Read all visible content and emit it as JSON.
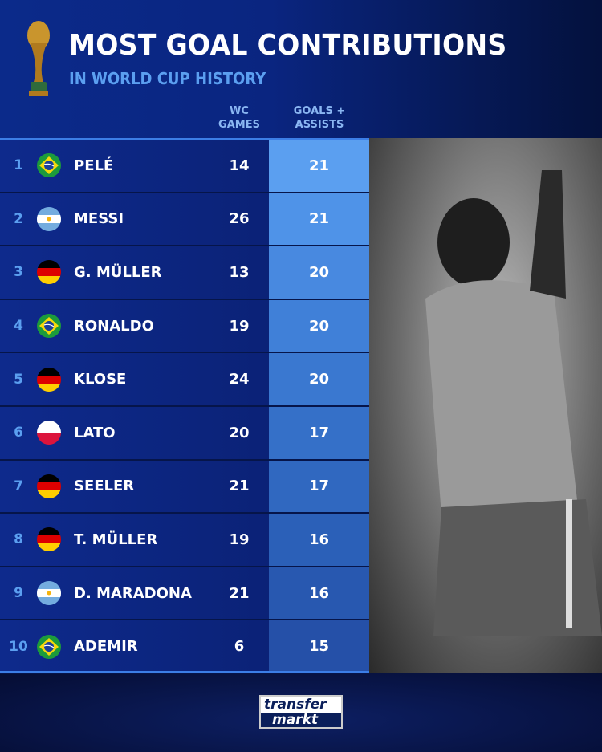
{
  "header": {
    "title": "MOST GOAL CONTRIBUTIONS",
    "subtitle": "IN WORLD CUP HISTORY"
  },
  "columns": {
    "games_line1": "WC",
    "games_line2": "GAMES",
    "ga_line1": "GOALS +",
    "ga_line2": "ASSISTS"
  },
  "rows": [
    {
      "rank": "1",
      "country": "Brazil",
      "name": "PELÉ",
      "games": "14",
      "ga": "21"
    },
    {
      "rank": "2",
      "country": "Argentina",
      "name": "MESSI",
      "games": "26",
      "ga": "21"
    },
    {
      "rank": "3",
      "country": "Germany",
      "name": "G. MÜLLER",
      "games": "13",
      "ga": "20"
    },
    {
      "rank": "4",
      "country": "Brazil",
      "name": "RONALDO",
      "games": "19",
      "ga": "20"
    },
    {
      "rank": "5",
      "country": "Germany",
      "name": "KLOSE",
      "games": "24",
      "ga": "20"
    },
    {
      "rank": "6",
      "country": "Poland",
      "name": "LATO",
      "games": "20",
      "ga": "17"
    },
    {
      "rank": "7",
      "country": "Germany",
      "name": "SEELER",
      "games": "21",
      "ga": "17"
    },
    {
      "rank": "8",
      "country": "Germany",
      "name": "T. MÜLLER",
      "games": "19",
      "ga": "16"
    },
    {
      "rank": "9",
      "country": "Argentina",
      "name": "D. MARADONA",
      "games": "21",
      "ga": "16"
    },
    {
      "rank": "10",
      "country": "Brazil",
      "name": "ADEMIR",
      "games": "6",
      "ga": "15"
    }
  ],
  "logo": {
    "line1": "transfer",
    "line2": "markt"
  },
  "colors": {
    "accent": "#5b9ff0",
    "background": "#0a2580"
  }
}
